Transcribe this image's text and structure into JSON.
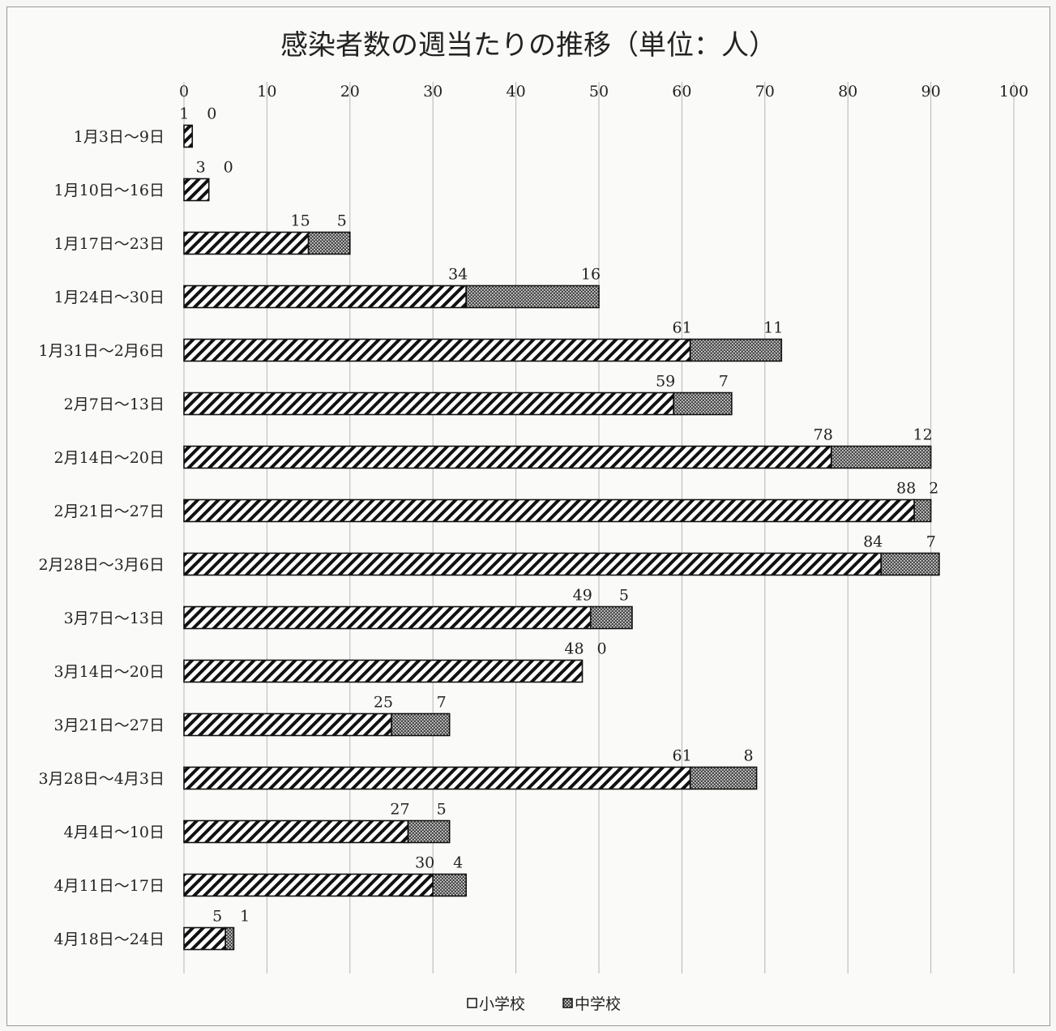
{
  "chart_data": {
    "type": "bar",
    "orientation": "horizontal",
    "stacked": true,
    "title": "感染者数の週当たりの推移（単位：人）",
    "xlim": [
      0,
      100
    ],
    "xticks": [
      "0",
      "10",
      "20",
      "30",
      "40",
      "50",
      "60",
      "70",
      "80",
      "90",
      "100"
    ],
    "grid": true,
    "legend_position": "bottom",
    "categories": [
      "1月3日～9日",
      "1月10日～16日",
      "1月17日～23日",
      "1月24日～30日",
      "1月31日～2月6日",
      "2月7日～13日",
      "2月14日～20日",
      "2月21日～27日",
      "2月28日～3月6日",
      "3月7日～13日",
      "3月14日～20日",
      "3月21日～27日",
      "3月28日～4月3日",
      "4月4日～10日",
      "4月11日～17日",
      "4月18日～24日"
    ],
    "series": [
      {
        "name": "小学校",
        "pattern": "diagonal-hatch",
        "values": [
          1,
          3,
          15,
          34,
          61,
          59,
          78,
          88,
          84,
          49,
          48,
          25,
          61,
          27,
          30,
          5
        ]
      },
      {
        "name": "中学校",
        "pattern": "dotted-dense",
        "values": [
          0,
          0,
          5,
          16,
          11,
          7,
          12,
          2,
          7,
          5,
          0,
          7,
          8,
          5,
          4,
          1
        ]
      }
    ],
    "colors": {
      "line": "#111111",
      "grid": "#b5b5b5",
      "background": "#fafaf8"
    }
  }
}
